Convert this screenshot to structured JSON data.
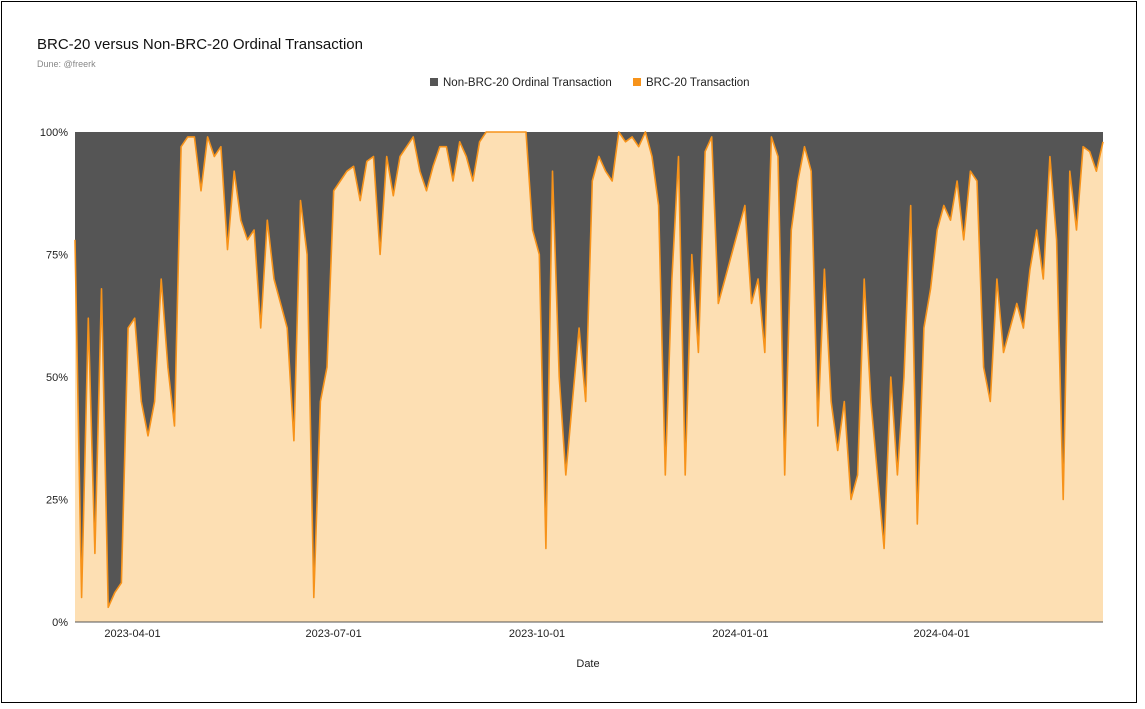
{
  "chart_data": {
    "type": "area",
    "stacked": "percent",
    "title": "BRC-20 versus Non-BRC-20 Ordinal Transaction",
    "subtitle": "Dune: @freerk",
    "xlabel": "Date",
    "ylabel": "",
    "ylim": [
      0,
      100
    ],
    "yticks": [
      "0%",
      "25%",
      "50%",
      "75%",
      "100%"
    ],
    "ytick_values": [
      0,
      25,
      50,
      75,
      100
    ],
    "xticks": [
      "2023-04-01",
      "2023-07-01",
      "2023-10-01",
      "2024-01-01",
      "2024-04-01"
    ],
    "x_start": "2023-03-06",
    "step_days": 3,
    "legend_position": "top-center",
    "colors": {
      "non_brc20": "#555555",
      "brc20": "#f7931a",
      "brc20_fill": "#fddfb3"
    },
    "series": [
      {
        "name": "Non-BRC-20 Ordinal Transaction",
        "color": "#555555",
        "values_note": "complement of BRC-20 share"
      },
      {
        "name": "BRC-20 Transaction",
        "color": "#f7931a",
        "values": [
          78,
          5,
          62,
          14,
          68,
          3,
          6,
          8,
          60,
          62,
          45,
          38,
          45,
          70,
          52,
          40,
          97,
          99,
          99,
          88,
          99,
          95,
          97,
          76,
          92,
          82,
          78,
          80,
          60,
          82,
          70,
          65,
          60,
          37,
          86,
          75,
          5,
          45,
          52,
          88,
          90,
          92,
          93,
          86,
          94,
          95,
          75,
          95,
          87,
          95,
          97,
          99,
          92,
          88,
          93,
          97,
          97,
          90,
          98,
          95,
          90,
          98,
          100,
          100,
          100,
          100,
          100,
          100,
          100,
          80,
          75,
          15,
          92,
          50,
          30,
          45,
          60,
          45,
          90,
          95,
          92,
          90,
          100,
          98,
          99,
          97,
          100,
          95,
          85,
          30,
          70,
          95,
          30,
          75,
          55,
          96,
          99,
          65,
          70,
          75,
          80,
          85,
          65,
          70,
          55,
          99,
          95,
          30,
          80,
          90,
          97,
          92,
          40,
          72,
          45,
          35,
          45,
          25,
          30,
          70,
          45,
          30,
          15,
          50,
          30,
          50,
          85,
          20,
          60,
          68,
          80,
          85,
          82,
          90,
          78,
          92,
          90,
          52,
          45,
          70,
          55,
          60,
          65,
          60,
          72,
          80,
          70,
          95,
          78,
          25,
          92,
          80,
          97,
          96,
          92,
          98
        ]
      }
    ]
  }
}
